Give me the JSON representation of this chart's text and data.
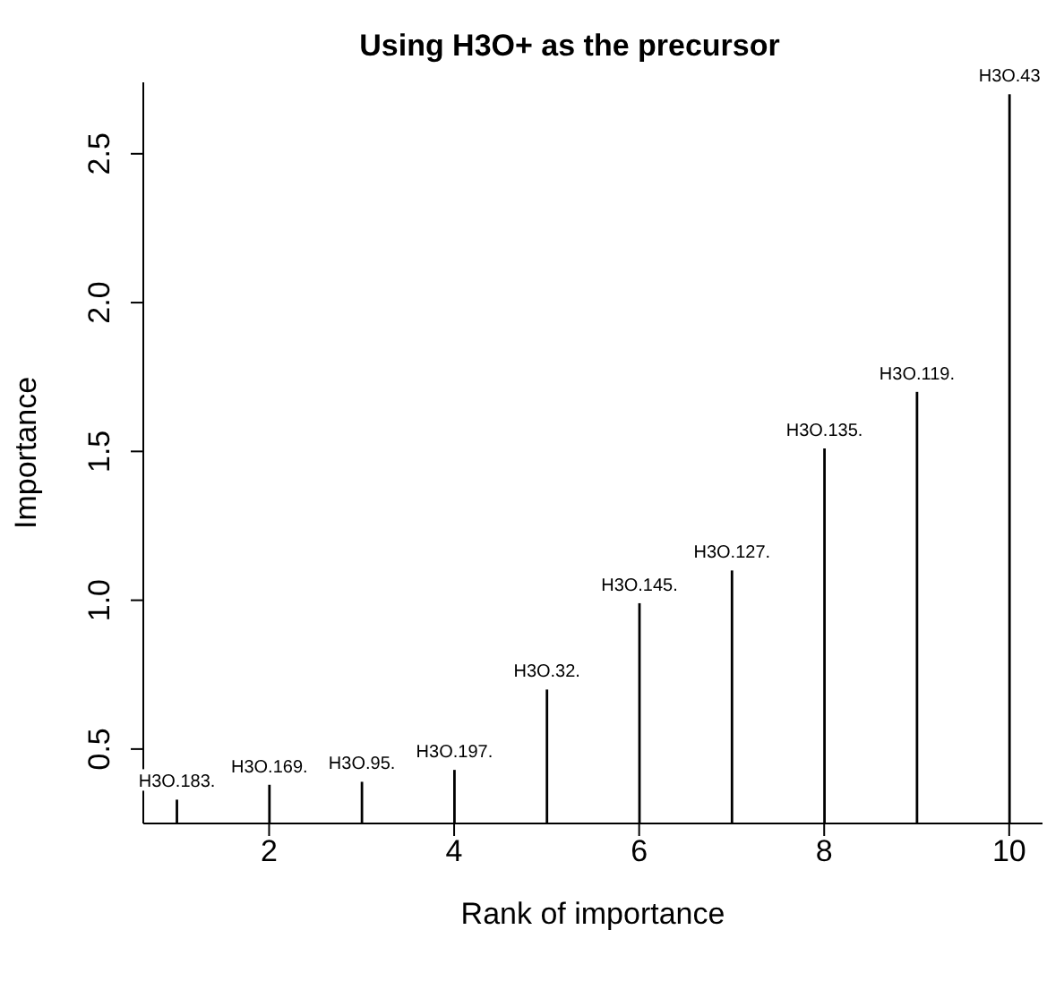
{
  "chart_data": {
    "type": "bar",
    "title": "Using H3O+ as the precursor",
    "xlabel": "Rank of importance",
    "ylabel": "Importance",
    "x": [
      1,
      2,
      3,
      4,
      5,
      6,
      7,
      8,
      9,
      10
    ],
    "values": [
      0.33,
      0.38,
      0.39,
      0.43,
      0.7,
      0.99,
      1.1,
      1.51,
      1.7,
      2.7
    ],
    "value_labels": [
      "H3O.183.",
      "H3O.169.",
      "H3O.95.",
      "H3O.197.",
      "H3O.32.",
      "H3O.145.",
      "H3O.127.",
      "H3O.135.",
      "H3O.119.",
      "H3O.43"
    ],
    "color": "#000000",
    "xlim": [
      0.64,
      10.36
    ],
    "xticks": [
      2,
      4,
      6,
      8,
      10
    ],
    "ylim": [
      0.25,
      2.74
    ],
    "yticks": [
      {
        "value": 0.5,
        "label": "0.5"
      },
      {
        "value": 1,
        "label": "1.0"
      },
      {
        "value": 1.5,
        "label": "1.5"
      },
      {
        "value": 2,
        "label": "2.0"
      },
      {
        "value": 2.5,
        "label": "2.5"
      }
    ],
    "grid": false,
    "legend": false
  }
}
